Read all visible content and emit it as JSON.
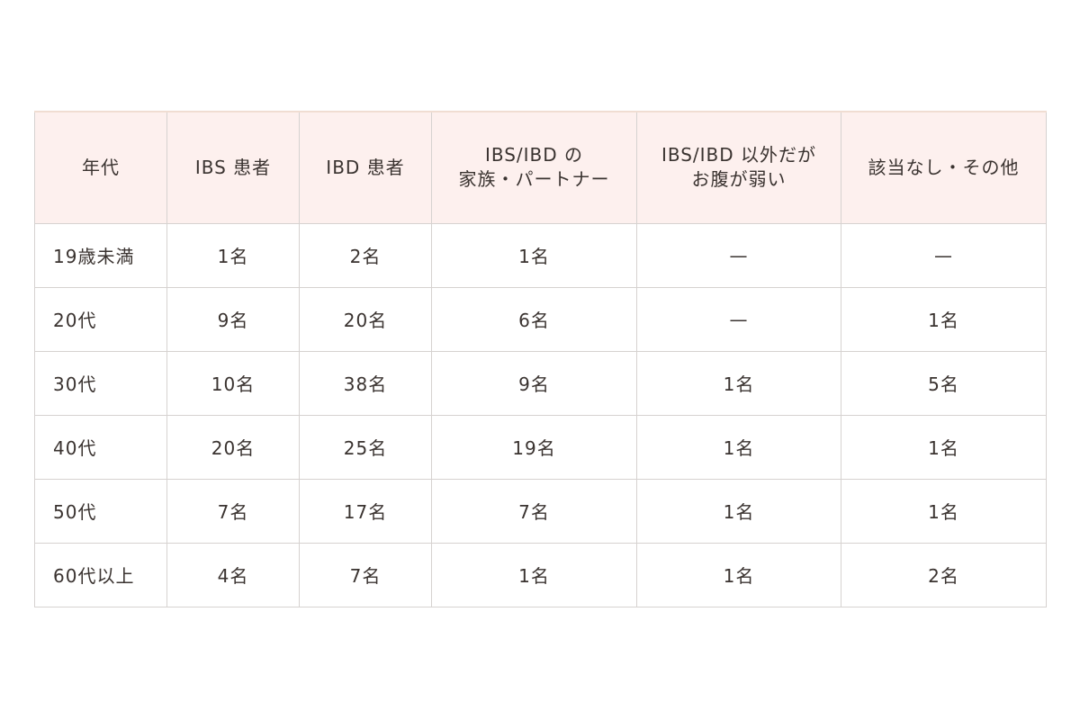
{
  "table": {
    "headers": [
      "年代",
      "IBS 患者",
      "IBD 患者",
      "IBS/IBD の\n家族・パートナー",
      "IBS/IBD 以外だが\nお腹が弱い",
      "該当なし・その他"
    ],
    "header_lines": [
      [
        "年代"
      ],
      [
        "IBS 患者"
      ],
      [
        "IBD 患者"
      ],
      [
        "IBS/IBD の",
        "家族・パートナー"
      ],
      [
        "IBS/IBD 以外だが",
        "お腹が弱い"
      ],
      [
        "該当なし・その他"
      ]
    ],
    "rows": [
      [
        "19歳未満",
        "1名",
        "2名",
        "1名",
        "—",
        "—"
      ],
      [
        "20代",
        "9名",
        "20名",
        "6名",
        "—",
        "1名"
      ],
      [
        "30代",
        "10名",
        "38名",
        "9名",
        "1名",
        "5名"
      ],
      [
        "40代",
        "20名",
        "25名",
        "19名",
        "1名",
        "1名"
      ],
      [
        "50代",
        "7名",
        "17名",
        "7名",
        "1名",
        "1名"
      ],
      [
        "60代以上",
        "4名",
        "7名",
        "1名",
        "1名",
        "2名"
      ]
    ]
  },
  "colors": {
    "header_bg": "#fdf0ee",
    "border": "#d6d2d0",
    "text": "#3a3330"
  }
}
